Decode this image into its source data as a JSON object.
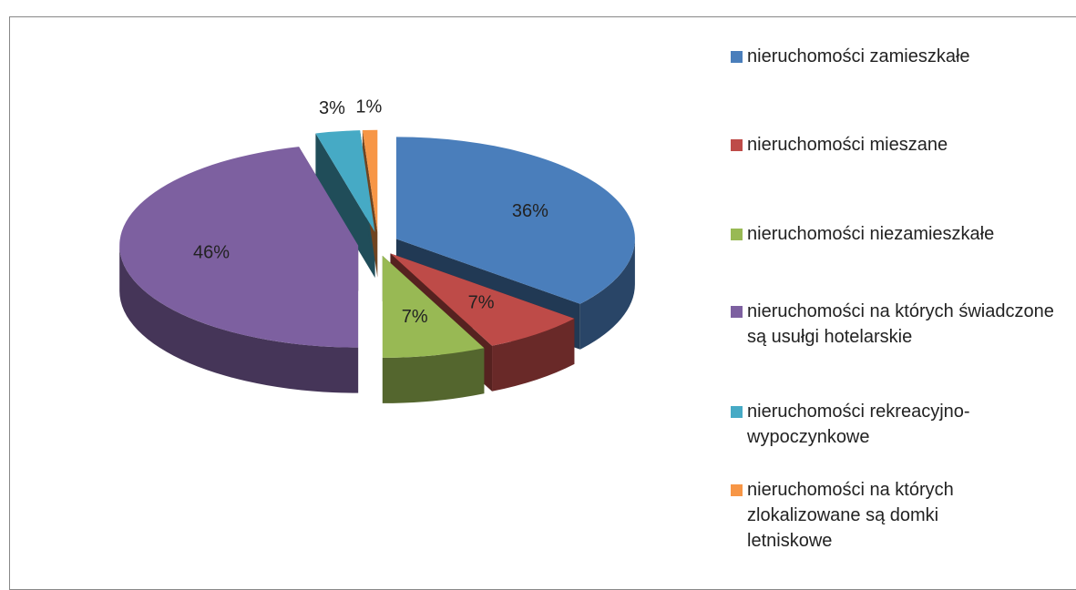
{
  "chart_data": {
    "type": "pie",
    "categories": [
      "nieruchomości zamieszkałe",
      "nieruchomości mieszane",
      "nieruchomości niezamieszkałe",
      "nieruchomości na których świadczone są usułgi hotelarskie",
      "nieruchomości rekreacyjno-wypoczynkowe",
      "nieruchomości na których zlokalizowane są domki letniskowe"
    ],
    "values": [
      36,
      7,
      7,
      46,
      3,
      1
    ],
    "value_labels": [
      "36%",
      "7%",
      "7%",
      "46%",
      "3%",
      "1%"
    ],
    "colors": [
      "#4a7ebb",
      "#be4b48",
      "#98b954",
      "#7d60a0",
      "#46aac5",
      "#f79646"
    ],
    "legend": "right"
  }
}
